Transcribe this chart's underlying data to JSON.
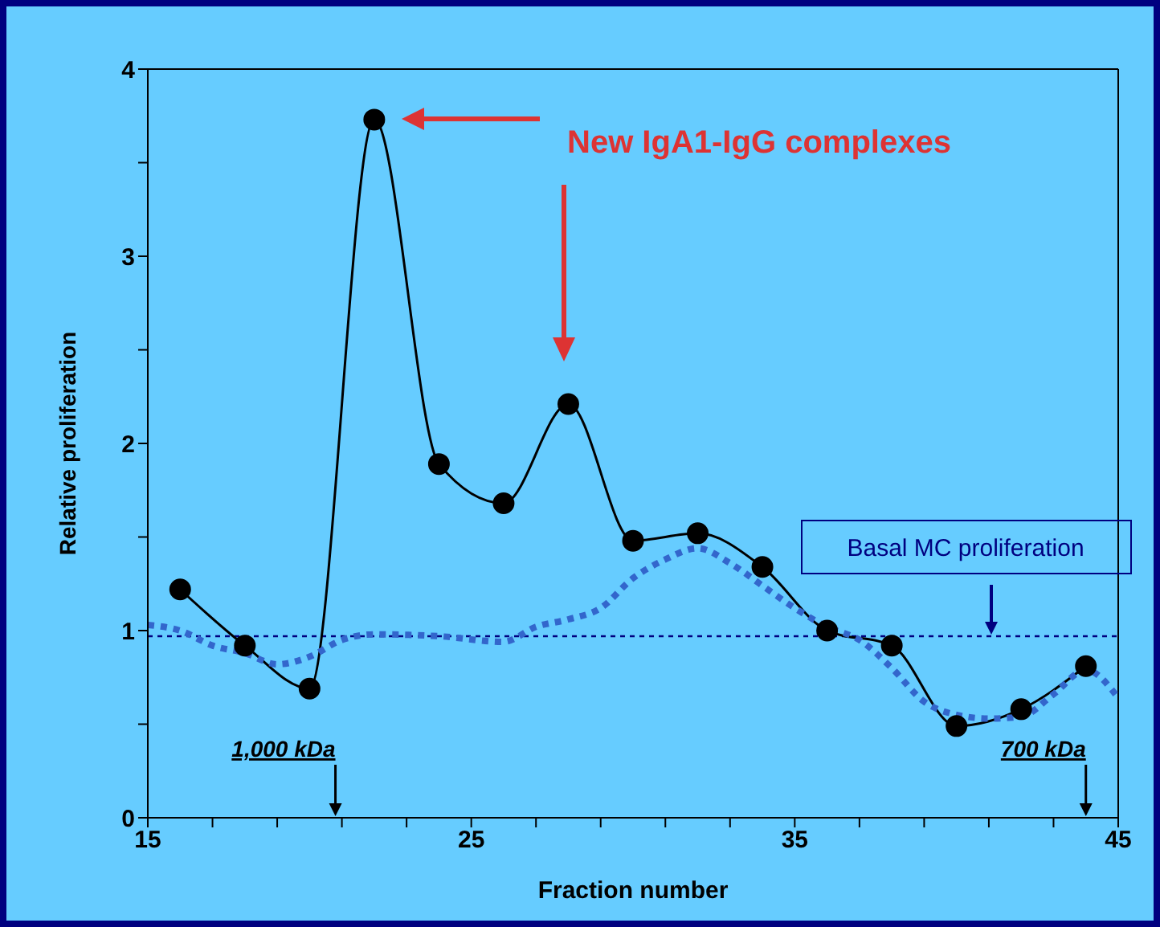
{
  "chart_data": {
    "type": "line",
    "xlabel": "Fraction number",
    "ylabel": "Relative proliferation",
    "xlim": [
      15,
      45
    ],
    "ylim": [
      0,
      4
    ],
    "xticks": [
      15,
      {
        "value": 17,
        "label": null
      },
      {
        "value": 19,
        "label": null
      },
      {
        "value": 21,
        "label": null
      },
      {
        "value": 23,
        "label": null
      },
      25,
      {
        "value": 27,
        "label": null
      },
      {
        "value": 29,
        "label": null
      },
      {
        "value": 31,
        "label": null
      },
      {
        "value": 33,
        "label": null
      },
      35,
      {
        "value": 37,
        "label": null
      },
      {
        "value": 39,
        "label": null
      },
      {
        "value": 41,
        "label": null
      },
      {
        "value": 43,
        "label": null
      },
      45
    ],
    "yticks": [
      0,
      {
        "value": 0.5,
        "label": null
      },
      1,
      {
        "value": 1.5,
        "label": null
      },
      2,
      {
        "value": 2.5,
        "label": null
      },
      3,
      {
        "value": 3.5,
        "label": null
      },
      4
    ],
    "legend": false,
    "series": [
      {
        "color": "#000000",
        "marker": "circle",
        "line_style": "solid",
        "x": [
          16,
          18,
          20,
          22,
          24,
          26,
          28,
          30,
          32,
          34,
          36,
          38,
          40,
          42,
          44
        ],
        "values": [
          1.22,
          0.92,
          0.69,
          3.73,
          1.89,
          1.68,
          2.21,
          1.48,
          1.52,
          1.34,
          1.0,
          0.92,
          0.49,
          0.58,
          0.81
        ]
      },
      {
        "color": "#3366cc",
        "marker": "none",
        "line_style": "dotted",
        "x": [
          15,
          16,
          17,
          18,
          19,
          20,
          21,
          22,
          24,
          26,
          27,
          28,
          29,
          30,
          31,
          32,
          33,
          34,
          35,
          36,
          37,
          38,
          39,
          40,
          41,
          42,
          43,
          44,
          45
        ],
        "values": [
          1.03,
          1.0,
          0.92,
          0.88,
          0.82,
          0.86,
          0.95,
          0.98,
          0.97,
          0.94,
          1.02,
          1.06,
          1.12,
          1.28,
          1.38,
          1.44,
          1.36,
          1.24,
          1.12,
          1.02,
          0.95,
          0.8,
          0.62,
          0.55,
          0.53,
          0.54,
          0.66,
          0.79,
          0.64
        ]
      }
    ],
    "ref_lines": [
      {
        "axis": "y",
        "value": 0.97,
        "label": "Basal MC proliferation",
        "color": "#000080",
        "line_style": "dotted"
      }
    ],
    "annotations": [
      "New IgA1-IgG complexes",
      "1,000 kDa",
      "700 kDa"
    ]
  }
}
